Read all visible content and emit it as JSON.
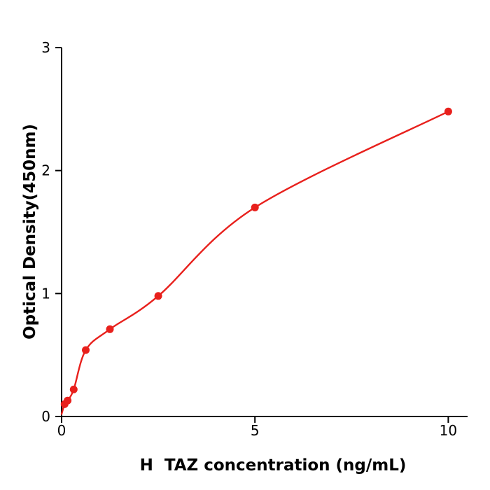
{
  "chart_data": {
    "type": "scatter",
    "title": "",
    "xlabel": "H  TAZ concentration (ng/mL)",
    "ylabel": "Optical Density(450nm)",
    "xlim": [
      0,
      10.5
    ],
    "ylim": [
      0,
      3
    ],
    "x_ticks": [
      0,
      5,
      10
    ],
    "y_ticks": [
      0,
      1,
      2,
      3
    ],
    "grid": false,
    "legend": false,
    "background_color": "#ffffff",
    "axis_color": "#000000",
    "curve_color": "#e8201c",
    "point_color": "#e8201c",
    "curve_origin": {
      "x": 0,
      "y": 0.02
    },
    "points": [
      {
        "x": 0.078,
        "y": 0.1
      },
      {
        "x": 0.156,
        "y": 0.13
      },
      {
        "x": 0.313,
        "y": 0.22
      },
      {
        "x": 0.625,
        "y": 0.54
      },
      {
        "x": 1.25,
        "y": 0.71
      },
      {
        "x": 2.5,
        "y": 0.98
      },
      {
        "x": 5,
        "y": 1.7
      },
      {
        "x": 10,
        "y": 2.48
      }
    ]
  }
}
